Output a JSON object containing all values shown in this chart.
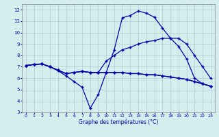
{
  "title": "Graphe des températures (°C)",
  "background_color": "#d4eeee",
  "grid_color": "#b0cccc",
  "line_color": "#0000aa",
  "xlim": [
    -0.5,
    23.5
  ],
  "ylim": [
    3,
    12.5
  ],
  "xtick_labels": [
    "0",
    "1",
    "2",
    "3",
    "4",
    "5",
    "6",
    "7",
    "8",
    "9",
    "10",
    "11",
    "12",
    "13",
    "14",
    "15",
    "16",
    "17",
    "18",
    "19",
    "20",
    "21",
    "22",
    "23"
  ],
  "xticks": [
    0,
    1,
    2,
    3,
    4,
    5,
    6,
    7,
    8,
    9,
    10,
    11,
    12,
    13,
    14,
    15,
    16,
    17,
    18,
    19,
    20,
    21,
    22,
    23
  ],
  "yticks": [
    3,
    4,
    5,
    6,
    7,
    8,
    9,
    10,
    11,
    12
  ],
  "line1_x": [
    0,
    1,
    2,
    3,
    4,
    5,
    6,
    7,
    8,
    9,
    10,
    11,
    12,
    13,
    14,
    15,
    16,
    17,
    18,
    19,
    20,
    21,
    22,
    23
  ],
  "line1_y": [
    7.1,
    7.2,
    7.25,
    7.0,
    6.65,
    6.2,
    5.7,
    5.2,
    3.35,
    4.55,
    6.5,
    8.5,
    11.3,
    11.5,
    11.9,
    11.7,
    11.35,
    10.4,
    9.5,
    8.8,
    7.7,
    6.0,
    5.5,
    5.3
  ],
  "line2_x": [
    0,
    1,
    2,
    3,
    4,
    5,
    6,
    7,
    8,
    9,
    10,
    11,
    12,
    13,
    14,
    15,
    16,
    17,
    18,
    19,
    20,
    21,
    22,
    23
  ],
  "line2_y": [
    7.1,
    7.2,
    7.25,
    7.0,
    6.7,
    6.4,
    6.5,
    6.6,
    6.5,
    6.5,
    7.5,
    8.0,
    8.5,
    8.7,
    9.0,
    9.2,
    9.3,
    9.5,
    9.5,
    9.5,
    9.0,
    8.0,
    7.0,
    6.0
  ],
  "line3_x": [
    0,
    1,
    2,
    3,
    4,
    5,
    6,
    7,
    8,
    9,
    10,
    11,
    12,
    13,
    14,
    15,
    16,
    17,
    18,
    19,
    20,
    21,
    22,
    23
  ],
  "line3_y": [
    7.1,
    7.2,
    7.25,
    7.0,
    6.7,
    6.4,
    6.5,
    6.6,
    6.5,
    6.5,
    6.5,
    6.5,
    6.5,
    6.4,
    6.4,
    6.3,
    6.3,
    6.2,
    6.1,
    6.0,
    5.9,
    5.7,
    5.5,
    5.3
  ],
  "line4_x": [
    0,
    1,
    2,
    3,
    4,
    5,
    6,
    7,
    8,
    9,
    10,
    11,
    12,
    13,
    14,
    15,
    16,
    17,
    18,
    19,
    20,
    21,
    22,
    23
  ],
  "line4_y": [
    7.1,
    7.2,
    7.25,
    7.0,
    6.7,
    6.4,
    6.5,
    6.6,
    6.5,
    6.5,
    6.5,
    6.5,
    6.5,
    6.4,
    6.4,
    6.3,
    6.3,
    6.2,
    6.1,
    6.0,
    5.9,
    5.7,
    5.5,
    5.3
  ]
}
